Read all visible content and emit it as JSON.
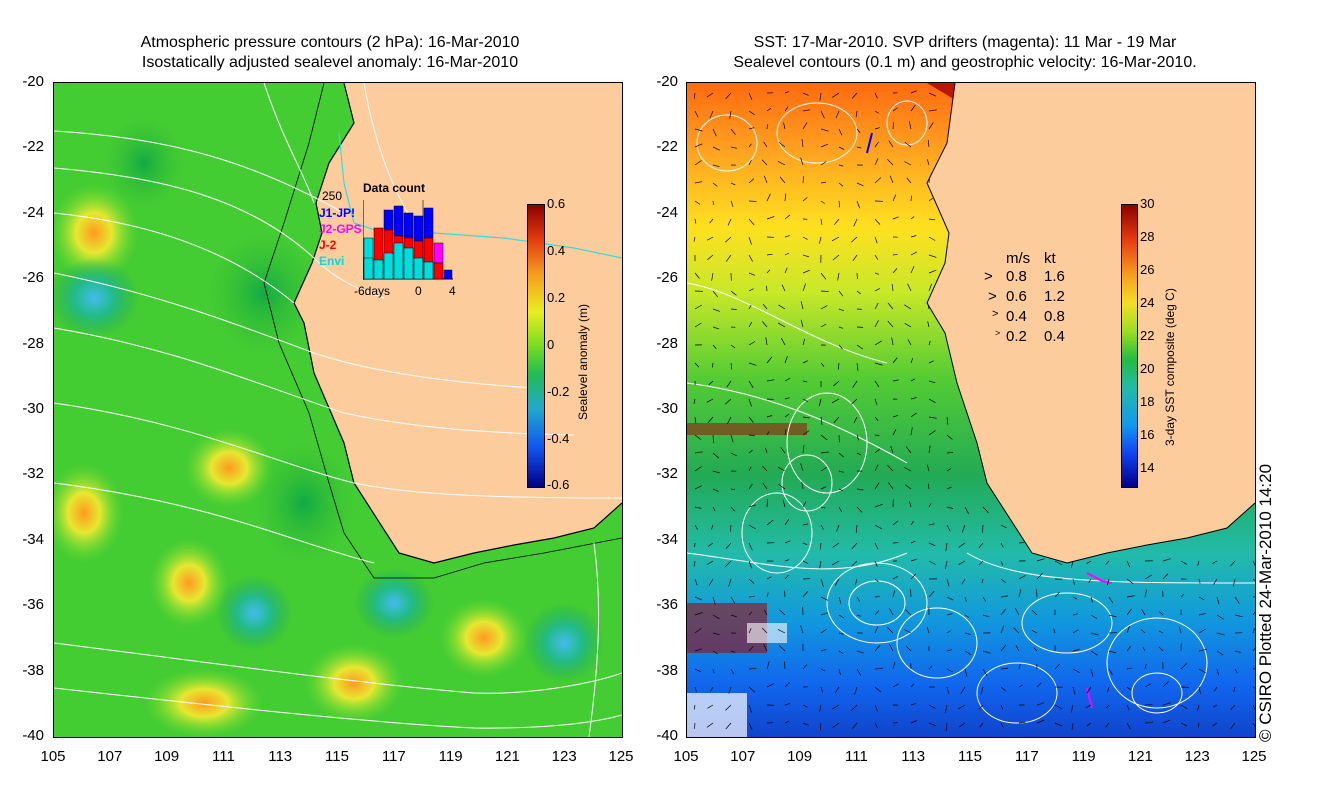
{
  "left_panel": {
    "title_line1": "Atmospheric pressure contours (2 hPa): 16-Mar-2010",
    "title_line2": "Isostatically adjusted sealevel anomaly: 16-Mar-2010",
    "colorbar": {
      "label": "Sealevel anomaly (m)",
      "ticks": [
        "0.6",
        "0.4",
        "0.2",
        "0",
        "-0.2",
        "-0.4",
        "-0.6"
      ],
      "range": [
        -0.6,
        0.6
      ]
    },
    "data_count": {
      "title": "Data count",
      "y_max_label": "250",
      "x_labels": [
        "-6days",
        "0",
        "4"
      ],
      "series": [
        {
          "name": "J1-JP!",
          "color": "#0000ff"
        },
        {
          "name": "J2-GPS",
          "color": "#ff00ff"
        },
        {
          "name": "J-2",
          "color": "#ff0000"
        },
        {
          "name": "Envi",
          "color": "#00e0e0"
        }
      ]
    }
  },
  "right_panel": {
    "title_line1": "SST: 17-Mar-2010. SVP drifters (magenta): 11 Mar - 19 Mar",
    "title_line2": "Sealevel contours (0.1 m) and geostrophic velocity: 16-Mar-2010.",
    "colorbar": {
      "label": "3-day SST composite (deg C)",
      "ticks": [
        "30",
        "28",
        "26",
        "24",
        "22",
        "20",
        "18",
        "16",
        "14"
      ],
      "range": [
        13,
        30
      ]
    },
    "velocity_legend": {
      "header_ms": "m/s",
      "header_kt": "kt",
      "rows": [
        {
          "ms": "0.8",
          "kt": "1.6"
        },
        {
          "ms": "0.6",
          "kt": "1.2"
        },
        {
          "ms": "0.4",
          "kt": "0.8"
        },
        {
          "ms": "0.2",
          "kt": "0.4"
        }
      ]
    }
  },
  "axes": {
    "y_ticks": [
      "-20",
      "-22",
      "-24",
      "-26",
      "-28",
      "-30",
      "-32",
      "-34",
      "-36",
      "-38",
      "-40"
    ],
    "x_ticks": [
      "105",
      "107",
      "109",
      "111",
      "113",
      "115",
      "117",
      "119",
      "121",
      "123",
      "125"
    ]
  },
  "credit": "© CSIRO Plotted 24-Mar-2010 14:20",
  "colors": {
    "land": "#fccc9c",
    "ocean_green": "#33cc33",
    "contour": "#ffffff"
  }
}
